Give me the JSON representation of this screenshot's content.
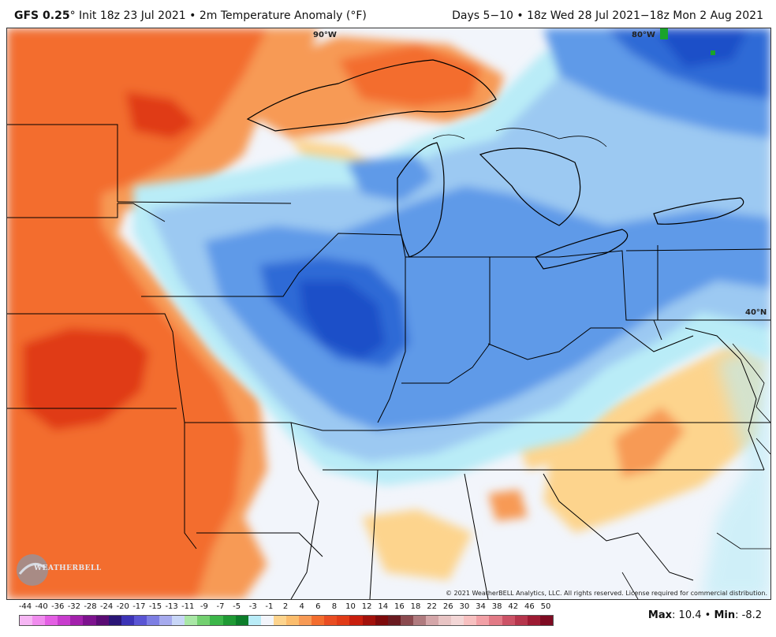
{
  "header": {
    "model": "GFS 0.25",
    "degree": "°",
    "init_text": "Init 18z 23 Jul 2021",
    "bullet": "•",
    "product": "2m Temperature Anomaly (°F)",
    "valid_text": "Days 5−10 • 18z Wed 28 Jul 2021−18z Mon 2 Aug 2021"
  },
  "map": {
    "lon_labels": [
      "90°W",
      "80°W"
    ],
    "lat_labels": [
      "40°N"
    ],
    "copyright": "© 2021 WeatherBELL Analytics, LLC. All rights reserved. License required for commercial distribution.",
    "logo_text": "WEATHERBELL"
  },
  "colors": {
    "warm_strong": "#e03b17",
    "warm": "#f36d2e",
    "warm_light": "#f79a55",
    "warm_pale": "#fdd48d",
    "neutral": "#f2f5fb",
    "cool_pale": "#b9ecf7",
    "cool_light": "#9cc9f2",
    "cool": "#5f9ae8",
    "cool_strong": "#2e6bd6",
    "cool_deep": "#1c4fc8",
    "boundaries": "#000000",
    "land_green": "#1aa32a"
  },
  "colorbar": {
    "labels": [
      "-44",
      "-40",
      "-36",
      "-32",
      "-28",
      "-24",
      "-20",
      "-17",
      "-15",
      "-13",
      "-11",
      "-9",
      "-7",
      "-5",
      "-3",
      "-1",
      "2",
      "4",
      "6",
      "8",
      "10",
      "12",
      "14",
      "16",
      "18",
      "22",
      "26",
      "30",
      "34",
      "38",
      "42",
      "46",
      "50"
    ],
    "colors": [
      "#f6b6f4",
      "#f08cee",
      "#e35fe3",
      "#c83ccd",
      "#a321ac",
      "#7d128e",
      "#5a0b74",
      "#2a1576",
      "#3c33b6",
      "#5a55d4",
      "#7d7ee3",
      "#a6aaee",
      "#c8d6f7",
      "#a9e7a6",
      "#73d070",
      "#3cb649",
      "#1f9a34",
      "#0c7d2a",
      "#b9ecf7",
      "#f2f5fb",
      "#fdd48d",
      "#fbbd6d",
      "#f79a55",
      "#f36d2e",
      "#e94d22",
      "#e03b17",
      "#c81e0d",
      "#a2110b",
      "#7d0a0b",
      "#6a1a20",
      "#8b4a4f",
      "#b07b7f",
      "#d4a6a9",
      "#e8c4c4",
      "#f3d6d6",
      "#f7c0c0",
      "#f2a0a6",
      "#e27a86",
      "#cc5266",
      "#b6354c",
      "#9d1b33",
      "#7e0b22"
    ]
  },
  "stats": {
    "max_label": "Max",
    "max_value": ": 10.4",
    "separator": "•",
    "min_label": "Min",
    "min_value": ": -8.2"
  }
}
